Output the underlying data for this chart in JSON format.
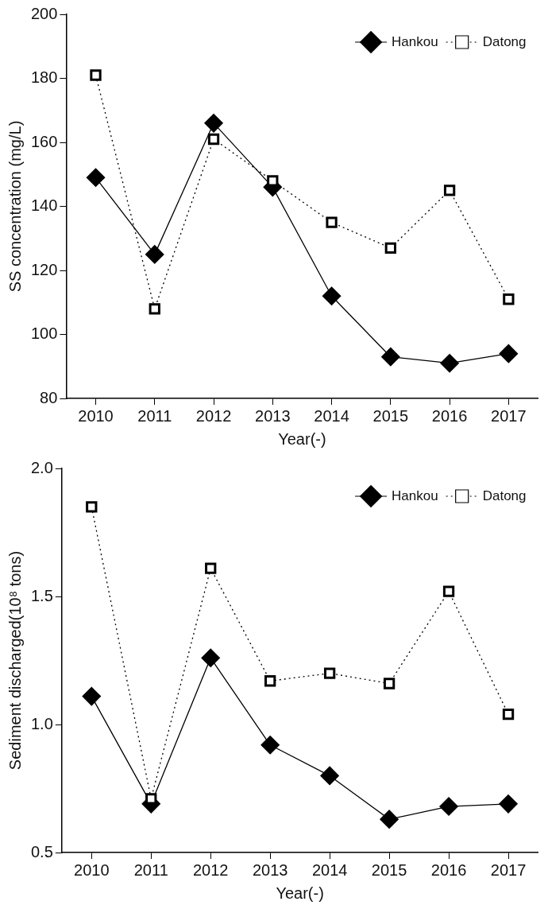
{
  "chart_data": [
    {
      "type": "line",
      "xlabel": "Year(-)",
      "ylabel": "SS concentration (mg/L)",
      "categories": [
        "2010",
        "2011",
        "2012",
        "2013",
        "2014",
        "2015",
        "2016",
        "2017"
      ],
      "ylim": [
        80,
        200
      ],
      "yticks": [
        80,
        100,
        120,
        140,
        160,
        180,
        200
      ],
      "grid": false,
      "legend": "top right",
      "series": [
        {
          "name": "Hankou",
          "color": "#000000",
          "marker": "diamond",
          "line_style": "solid",
          "values": [
            149,
            125,
            166,
            146,
            112,
            93,
            91,
            94
          ]
        },
        {
          "name": "Datong",
          "color": "#000000",
          "marker": "square",
          "line_style": "dotted",
          "values": [
            181,
            108,
            161,
            148,
            135,
            127,
            145,
            111
          ]
        }
      ]
    },
    {
      "type": "line",
      "xlabel": "Year(-)",
      "ylabel": "Sediment discharged(10⁸ tons)",
      "categories": [
        "2010",
        "2011",
        "2012",
        "2013",
        "2014",
        "2015",
        "2016",
        "2017"
      ],
      "ylim": [
        0.5,
        2.0
      ],
      "yticks": [
        0.5,
        {
          "value": 1.0,
          "label": "1.0"
        },
        1.5,
        {
          "value": 2.0,
          "label": "2.0"
        }
      ],
      "grid": false,
      "legend": "top right",
      "series": [
        {
          "name": "Hankou",
          "color": "#000000",
          "marker": "diamond",
          "line_style": "solid",
          "values": [
            1.11,
            0.69,
            1.26,
            0.92,
            0.8,
            0.63,
            0.68,
            0.69
          ]
        },
        {
          "name": "Datong",
          "color": "#000000",
          "marker": "square",
          "line_style": "dotted",
          "values": [
            1.85,
            0.71,
            1.61,
            1.17,
            1.2,
            1.16,
            1.52,
            1.04
          ]
        }
      ]
    }
  ]
}
